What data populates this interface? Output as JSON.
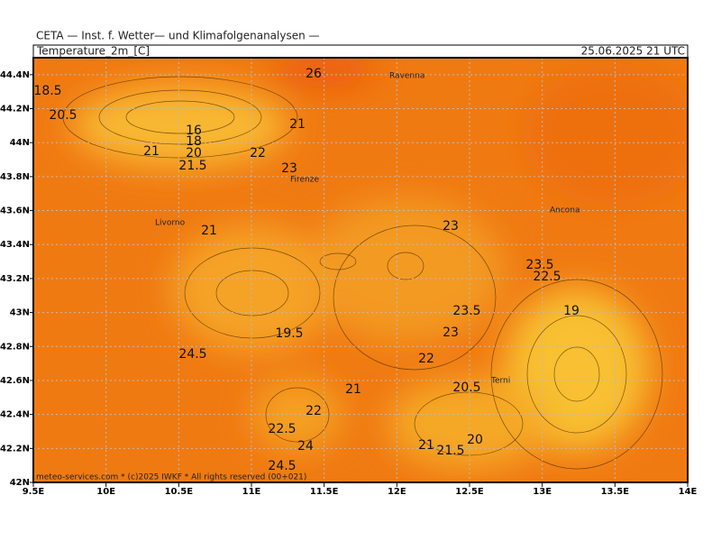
{
  "header": {
    "institute": "CETA — Inst. f. Wetter— und Klimafolgenanalysen —",
    "title": "Temperature_2m_[C]",
    "datetime": "25.06.2025 21 UTC"
  },
  "axes": {
    "xlim": [
      9.5,
      14
    ],
    "ylim": [
      42,
      44.5
    ],
    "xticks": [
      {
        "value": 9.5,
        "label": "9.5E"
      },
      {
        "value": 10,
        "label": "10E"
      },
      {
        "value": 10.5,
        "label": "10.5E"
      },
      {
        "value": 11,
        "label": "11E"
      },
      {
        "value": 11.5,
        "label": "11.5E"
      },
      {
        "value": 12,
        "label": "12E"
      },
      {
        "value": 12.5,
        "label": "12.5E"
      },
      {
        "value": 13,
        "label": "13E"
      },
      {
        "value": 13.5,
        "label": "13.5E"
      },
      {
        "value": 14,
        "label": "14E"
      }
    ],
    "yticks": [
      {
        "value": 42,
        "label": "42N"
      },
      {
        "value": 42.2,
        "label": "42.2N"
      },
      {
        "value": 42.4,
        "label": "42.4N"
      },
      {
        "value": 42.6,
        "label": "42.6N"
      },
      {
        "value": 42.8,
        "label": "42.8N"
      },
      {
        "value": 43,
        "label": "43N"
      },
      {
        "value": 43.2,
        "label": "43.2N"
      },
      {
        "value": 43.4,
        "label": "43.4N"
      },
      {
        "value": 43.6,
        "label": "43.6N"
      },
      {
        "value": 43.8,
        "label": "43.8N"
      },
      {
        "value": 44,
        "label": "44N"
      },
      {
        "value": 44.2,
        "label": "44.2N"
      },
      {
        "value": 44.4,
        "label": "44.4N"
      }
    ],
    "grid": true
  },
  "cities": [
    "Ravenna",
    "Firenze",
    "Livorno",
    "Ancona",
    "Terni"
  ],
  "contour_labels": [
    "26",
    "18.5",
    "20.5",
    "16",
    "21",
    "18",
    "20",
    "21",
    "22",
    "21.5",
    "23",
    "21",
    "23",
    "23.5",
    "22.5",
    "19",
    "23.5",
    "19.5",
    "23",
    "24.5",
    "22",
    "21",
    "20.5",
    "22",
    "22.5",
    "24",
    "20",
    "21",
    "21.5",
    "24.5"
  ],
  "footer": "meteo-services.com * (c)2025 IWKF * All rights reserved (00+021)"
}
